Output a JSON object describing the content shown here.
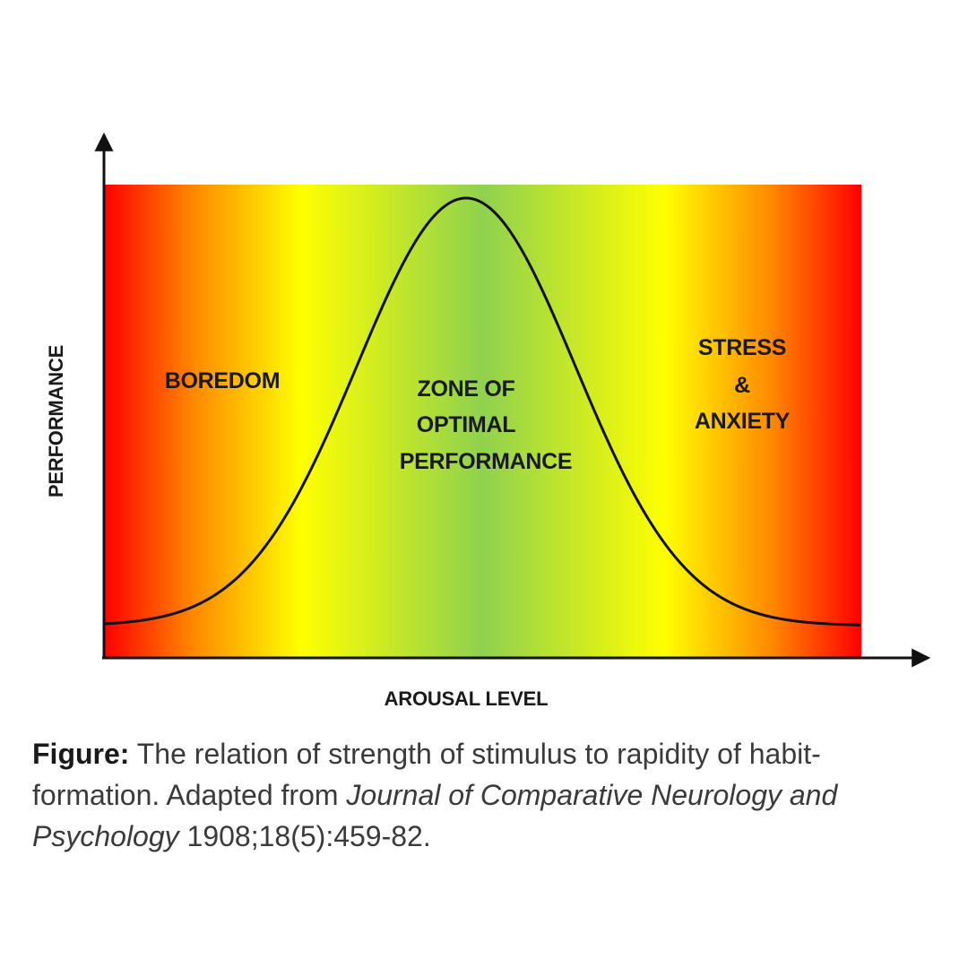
{
  "diagram": {
    "y_axis_label": "PERFORMANCE",
    "x_axis_label": "AROUSAL LEVEL",
    "zones": {
      "left": [
        "BOREDOM"
      ],
      "center": [
        "ZONE OF",
        "OPTIMAL",
        "PERFORMANCE"
      ],
      "right": [
        "STRESS",
        "&",
        "ANXIETY"
      ]
    },
    "gradient_colors": {
      "edge": "#ff0000",
      "orange": "#ff8a00",
      "yellow": "#ffff00",
      "green": "#8fd14f"
    },
    "curve_shape": "bell"
  },
  "caption": {
    "label": "Figure:",
    "text_before": " The relation of strength of stimulus to rapidity of habit-formation. Adapted from ",
    "journal": "Journal of Comparative Neurology and Psychology",
    "text_after": " 1908;18(5):459-82."
  }
}
